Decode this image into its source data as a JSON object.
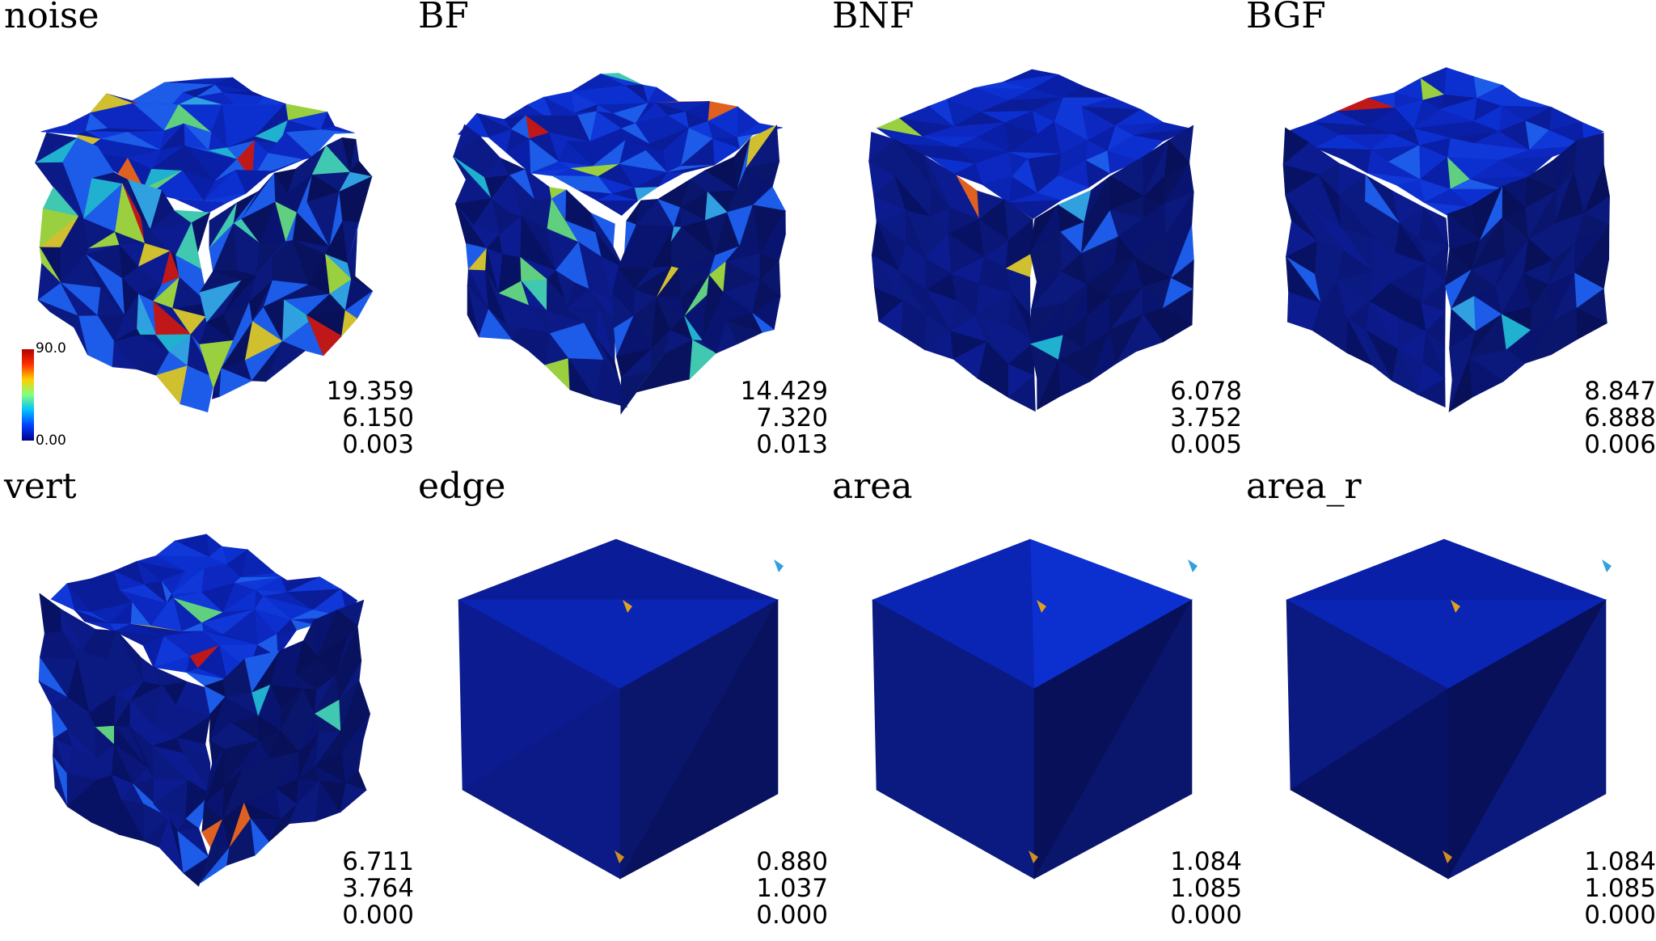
{
  "colorbar": {
    "max_label": "90.0",
    "min_label": "0.00",
    "colors": [
      "#b00000",
      "#ff3000",
      "#ffd000",
      "#80ff80",
      "#00c0ff",
      "#0040ff",
      "#00008a"
    ]
  },
  "panels": [
    {
      "id": "noise",
      "title": "noise",
      "stats": [
        "19.359",
        "6.150",
        "0.003"
      ],
      "style": "noisy",
      "hot": 0.36
    },
    {
      "id": "bf",
      "title": "BF",
      "stats": [
        "14.429",
        "7.320",
        "0.013"
      ],
      "style": "medium",
      "hot": 0.2
    },
    {
      "id": "bnf",
      "title": "BNF",
      "stats": [
        "6.078",
        "3.752",
        "0.005"
      ],
      "style": "smooth",
      "hot": 0.06
    },
    {
      "id": "bgf",
      "title": "BGF",
      "stats": [
        "8.847",
        "6.888",
        "0.006"
      ],
      "style": "smooth",
      "hot": 0.07
    },
    {
      "id": "vert",
      "title": "vert",
      "stats": [
        "6.711",
        "3.764",
        "0.000"
      ],
      "style": "medium",
      "hot": 0.1
    },
    {
      "id": "edge",
      "title": "edge",
      "stats": [
        "0.880",
        "1.037",
        "0.000"
      ],
      "style": "clean",
      "hot": 0.0
    },
    {
      "id": "area",
      "title": "area",
      "stats": [
        "1.084",
        "1.085",
        "0.000"
      ],
      "style": "clean",
      "hot": 0.0
    },
    {
      "id": "area-r",
      "title": "area_r",
      "stats": [
        "1.084",
        "1.085",
        "0.000"
      ],
      "style": "clean",
      "hot": 0.0
    }
  ]
}
